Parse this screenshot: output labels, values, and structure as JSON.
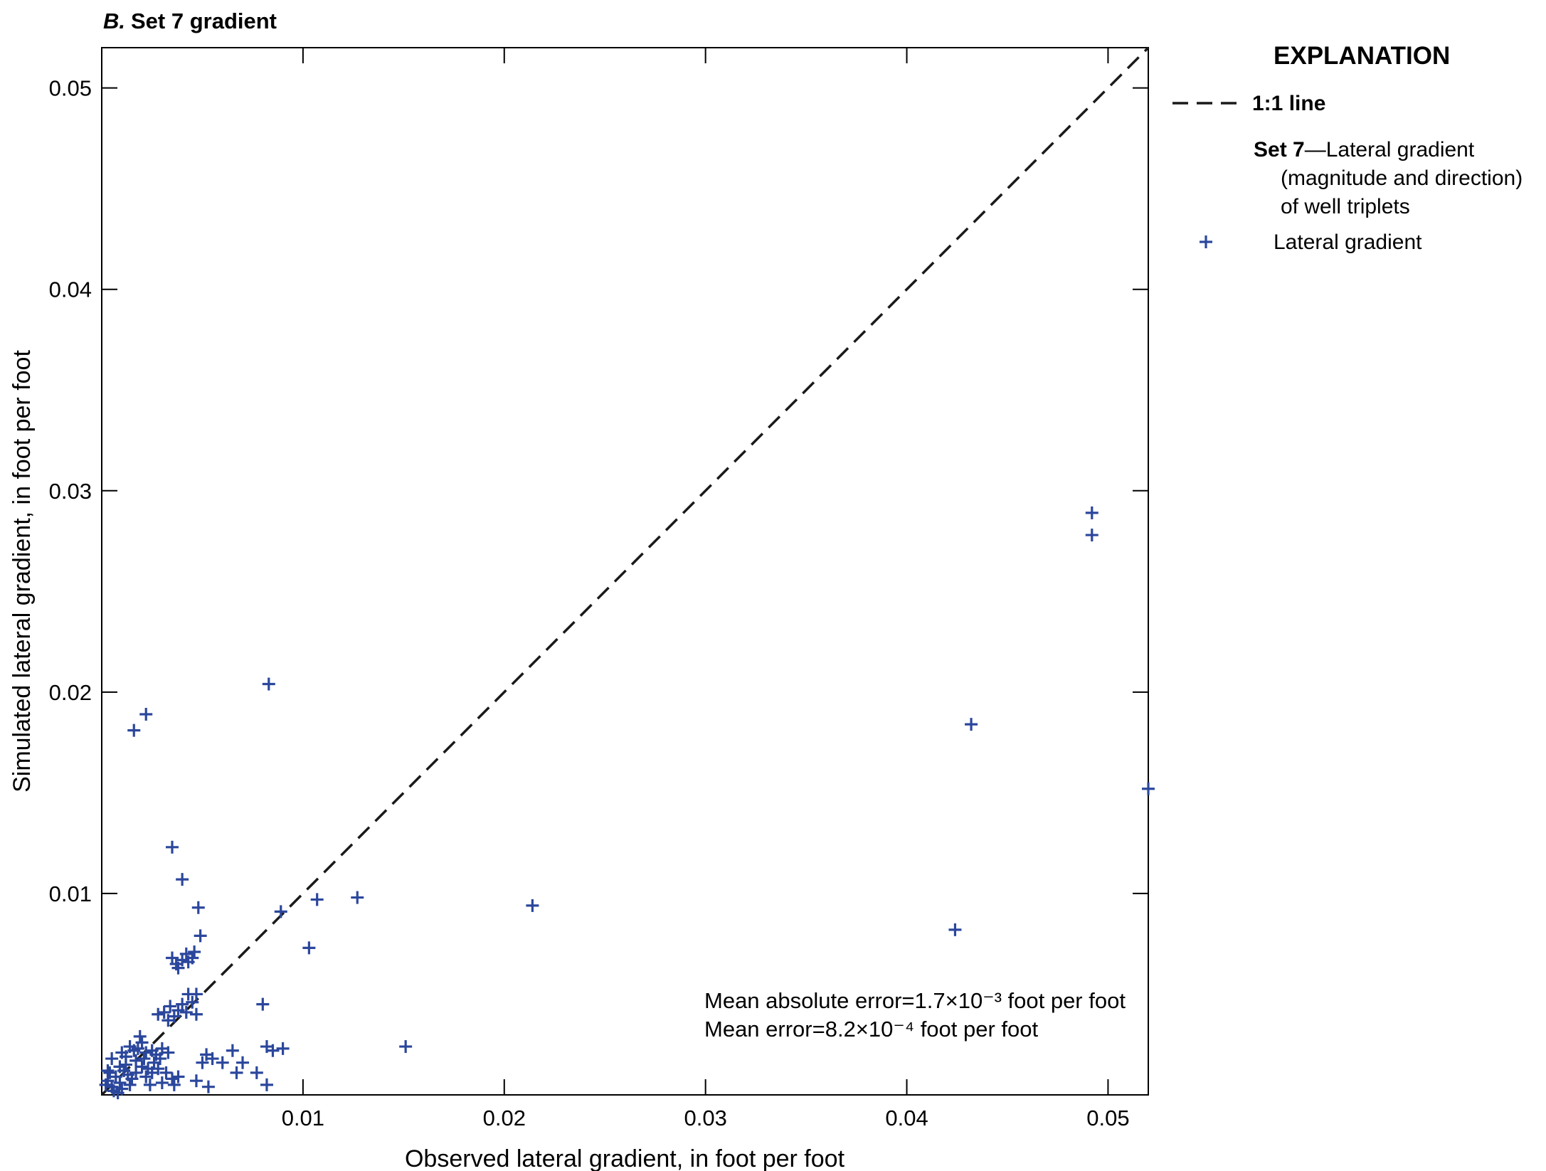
{
  "chart_data": {
    "type": "scatter",
    "title_prefix": "B.",
    "title": "Set 7 gradient",
    "xlabel": "Observed lateral gradient, in foot per foot",
    "ylabel": "Simulated lateral gradient, in foot per foot",
    "xlim": [
      0,
      0.052
    ],
    "ylim": [
      0,
      0.052
    ],
    "xticks": [
      0.01,
      0.02,
      0.03,
      0.04,
      0.05
    ],
    "yticks": [
      0.01,
      0.02,
      0.03,
      0.04,
      0.05
    ],
    "xtick_labels": [
      "0.01",
      "0.02",
      "0.03",
      "0.04",
      "0.05"
    ],
    "ytick_labels": [
      "0.01",
      "0.02",
      "0.03",
      "0.04",
      "0.05"
    ],
    "grid": false,
    "legend_position": "right",
    "reference_line": {
      "label": "1:1 line",
      "from": [
        0,
        0
      ],
      "to": [
        0.052,
        0.052
      ],
      "style": "dashed",
      "color": "#1a1a1a"
    },
    "annotations": [
      "Mean absolute error=1.7×10⁻³ foot per foot",
      "Mean error=8.2×10⁻⁴ foot per foot"
    ],
    "legend": {
      "heading": "EXPLANATION",
      "line_label": "1:1 line",
      "set_label": "Set 7",
      "set_description": [
        "—Lateral gradient",
        "(magnitude and direction)",
        "of well triplets"
      ],
      "marker_label": "Lateral gradient"
    },
    "series": [
      {
        "name": "Lateral gradient",
        "marker": "+",
        "color": "#2b479c",
        "points": [
          [
            0.0016,
            0.0181
          ],
          [
            0.0022,
            0.0189
          ],
          [
            0.0083,
            0.0204
          ],
          [
            0.0035,
            0.0123
          ],
          [
            0.004,
            0.0107
          ],
          [
            0.0048,
            0.0093
          ],
          [
            0.0049,
            0.0079
          ],
          [
            0.0089,
            0.0091
          ],
          [
            0.0107,
            0.0097
          ],
          [
            0.0127,
            0.0098
          ],
          [
            0.0103,
            0.0073
          ],
          [
            0.0214,
            0.0094
          ],
          [
            0.0151,
            0.0024
          ],
          [
            0.0424,
            0.0082
          ],
          [
            0.0432,
            0.0184
          ],
          [
            0.0492,
            0.0289
          ],
          [
            0.0492,
            0.0278
          ],
          [
            0.052,
            0.0152
          ],
          [
            0.008,
            0.0045
          ],
          [
            0.0082,
            0.0024
          ],
          [
            0.0085,
            0.0022
          ],
          [
            0.009,
            0.0023
          ],
          [
            0.0077,
            0.0011
          ],
          [
            0.0082,
            0.0005
          ],
          [
            0.0065,
            0.0022
          ],
          [
            0.0067,
            0.0011
          ],
          [
            0.007,
            0.0016
          ],
          [
            0.006,
            0.0016
          ],
          [
            0.0055,
            0.0018
          ],
          [
            0.0052,
            0.002
          ],
          [
            0.005,
            0.0016
          ],
          [
            0.0053,
            0.0004
          ],
          [
            0.0047,
            0.0007
          ],
          [
            0.0047,
            0.005
          ],
          [
            0.0045,
            0.0046
          ],
          [
            0.0042,
            0.0041
          ],
          [
            0.0047,
            0.004
          ],
          [
            0.0043,
            0.005
          ],
          [
            0.004,
            0.0045
          ],
          [
            0.0038,
            0.0042
          ],
          [
            0.0036,
            0.0039
          ],
          [
            0.0034,
            0.0044
          ],
          [
            0.0031,
            0.0041
          ],
          [
            0.0028,
            0.004
          ],
          [
            0.0033,
            0.0037
          ],
          [
            0.0045,
            0.0068
          ],
          [
            0.0043,
            0.0066
          ],
          [
            0.004,
            0.0067
          ],
          [
            0.0037,
            0.0065
          ],
          [
            0.0035,
            0.0068
          ],
          [
            0.0038,
            0.0063
          ],
          [
            0.0046,
            0.0071
          ],
          [
            0.0042,
            0.007
          ],
          [
            0.0033,
            0.0021
          ],
          [
            0.003,
            0.0023
          ],
          [
            0.0027,
            0.002
          ],
          [
            0.0025,
            0.0022
          ],
          [
            0.0022,
            0.0021
          ],
          [
            0.002,
            0.0026
          ],
          [
            0.0018,
            0.0023
          ],
          [
            0.0019,
            0.0029
          ],
          [
            0.0016,
            0.0022
          ],
          [
            0.0014,
            0.0024
          ],
          [
            0.0012,
            0.0019
          ],
          [
            0.001,
            0.0021
          ],
          [
            0.0028,
            0.0013
          ],
          [
            0.0025,
            0.0011
          ],
          [
            0.0022,
            0.0009
          ],
          [
            0.0032,
            0.0011
          ],
          [
            0.0035,
            0.0008
          ],
          [
            0.0038,
            0.0009
          ],
          [
            0.002,
            0.0014
          ],
          [
            0.0017,
            0.0011
          ],
          [
            0.0015,
            0.0008
          ],
          [
            0.0013,
            0.001
          ],
          [
            0.0011,
            0.0012
          ],
          [
            0.0009,
            0.0006
          ],
          [
            0.0007,
            0.0009
          ],
          [
            0.0005,
            0.0004
          ],
          [
            0.0004,
            0.0011
          ],
          [
            0.0003,
            0.0007
          ],
          [
            0.0002,
            0.0005
          ],
          [
            0.0006,
            0.0002
          ],
          [
            0.001,
            0.0003
          ],
          [
            0.0008,
            0.0001
          ],
          [
            0.0014,
            0.0005
          ],
          [
            0.0024,
            0.0005
          ],
          [
            0.003,
            0.0006
          ],
          [
            0.0036,
            0.0005
          ],
          [
            0.0026,
            0.0016
          ],
          [
            0.0029,
            0.0018
          ],
          [
            0.0021,
            0.0018
          ],
          [
            0.0012,
            0.0015
          ],
          [
            0.0017,
            0.0017
          ],
          [
            0.0023,
            0.0013
          ],
          [
            0.0009,
            0.0014
          ],
          [
            0.0005,
            0.0018
          ],
          [
            0.0003,
            0.0012
          ]
        ]
      }
    ]
  }
}
